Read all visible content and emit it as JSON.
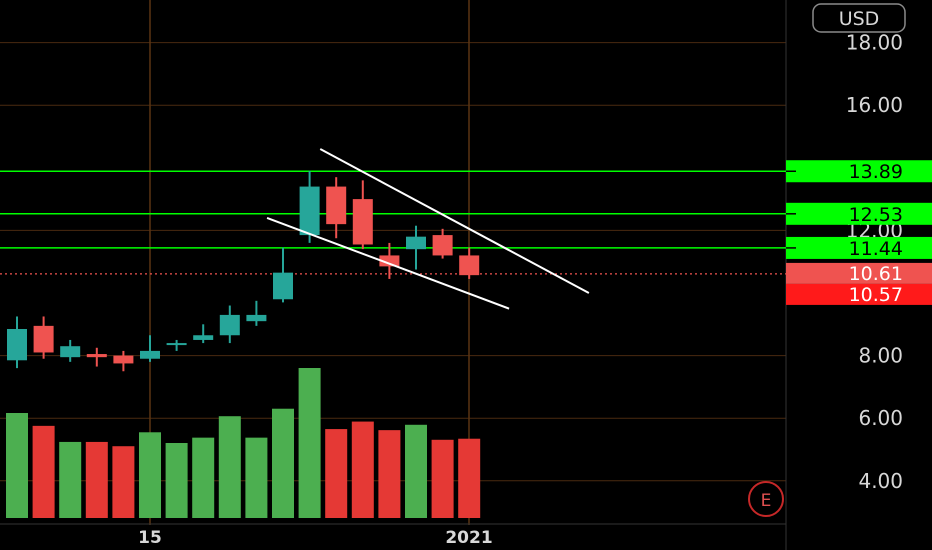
{
  "currency_button": {
    "label": "USD"
  },
  "earnings_marker": {
    "label": "E"
  },
  "colors": {
    "background": "#000000",
    "bull": "#26a69a",
    "bear": "#ef5350",
    "volume_bull": "#4caf50",
    "volume_bear": "#e53935",
    "level_line": "#00ff00",
    "trendline": "#ffffff",
    "grid": "#4a2a10",
    "axis_text": "#d8d8d8"
  },
  "chart_data": {
    "type": "candlestick",
    "y_axis": {
      "ticks": [
        "18.00",
        "16.00",
        "12.00",
        "8.00",
        "6.00",
        "4.00"
      ],
      "tick_values": [
        18,
        16,
        12,
        8,
        6,
        4
      ],
      "range": [
        3.0,
        19.2
      ]
    },
    "x_axis": {
      "labels": [
        "15",
        "2021"
      ]
    },
    "candles": [
      {
        "o": 7.85,
        "h": 9.25,
        "l": 7.6,
        "c": 8.85
      },
      {
        "o": 8.95,
        "h": 9.25,
        "l": 7.9,
        "c": 8.1
      },
      {
        "o": 7.95,
        "h": 8.5,
        "l": 7.8,
        "c": 8.3
      },
      {
        "o": 8.05,
        "h": 8.25,
        "l": 7.65,
        "c": 7.95
      },
      {
        "o": 8.0,
        "h": 8.15,
        "l": 7.5,
        "c": 7.75
      },
      {
        "o": 7.9,
        "h": 8.65,
        "l": 7.8,
        "c": 8.15
      },
      {
        "o": 8.35,
        "h": 8.5,
        "l": 8.15,
        "c": 8.4
      },
      {
        "o": 8.5,
        "h": 9.0,
        "l": 8.4,
        "c": 8.65
      },
      {
        "o": 8.65,
        "h": 9.6,
        "l": 8.4,
        "c": 9.3
      },
      {
        "o": 9.1,
        "h": 9.75,
        "l": 8.95,
        "c": 9.3
      },
      {
        "o": 9.8,
        "h": 11.45,
        "l": 9.7,
        "c": 10.65
      },
      {
        "o": 11.85,
        "h": 13.9,
        "l": 11.6,
        "c": 13.4
      },
      {
        "o": 13.4,
        "h": 13.7,
        "l": 11.75,
        "c": 12.2
      },
      {
        "o": 13.0,
        "h": 13.6,
        "l": 11.4,
        "c": 11.55
      },
      {
        "o": 11.2,
        "h": 11.6,
        "l": 10.45,
        "c": 10.85
      },
      {
        "o": 11.4,
        "h": 12.15,
        "l": 10.75,
        "c": 11.8
      },
      {
        "o": 11.85,
        "h": 12.05,
        "l": 11.1,
        "c": 11.2
      },
      {
        "o": 11.2,
        "h": 11.45,
        "l": 10.45,
        "c": 10.57
      }
    ],
    "volume": [
      {
        "v": 4.9,
        "dir": "up"
      },
      {
        "v": 4.3,
        "dir": "down"
      },
      {
        "v": 3.55,
        "dir": "up"
      },
      {
        "v": 3.55,
        "dir": "down"
      },
      {
        "v": 3.35,
        "dir": "down"
      },
      {
        "v": 4.0,
        "dir": "up"
      },
      {
        "v": 3.5,
        "dir": "up"
      },
      {
        "v": 3.75,
        "dir": "up"
      },
      {
        "v": 4.75,
        "dir": "up"
      },
      {
        "v": 3.75,
        "dir": "up"
      },
      {
        "v": 5.1,
        "dir": "up"
      },
      {
        "v": 7.0,
        "dir": "up"
      },
      {
        "v": 4.15,
        "dir": "down"
      },
      {
        "v": 4.5,
        "dir": "down"
      },
      {
        "v": 4.1,
        "dir": "down"
      },
      {
        "v": 4.35,
        "dir": "up"
      },
      {
        "v": 3.65,
        "dir": "down"
      },
      {
        "v": 3.7,
        "dir": "down"
      }
    ],
    "horizontal_levels": [
      {
        "label": "13.89",
        "value": 13.89
      },
      {
        "label": "12.53",
        "value": 12.53
      },
      {
        "label": "11.44",
        "value": 11.44
      }
    ],
    "price_tags": [
      {
        "label": "10.61",
        "value": 10.61
      },
      {
        "label": "10.57",
        "value": 10.57
      }
    ],
    "trendlines": [
      {
        "from": {
          "candle": 11.4,
          "price": 14.6
        },
        "to": {
          "candle": 21.5,
          "price": 10.0
        }
      },
      {
        "from": {
          "candle": 9.4,
          "price": 12.4
        },
        "to": {
          "candle": 18.5,
          "price": 9.5
        }
      }
    ]
  }
}
